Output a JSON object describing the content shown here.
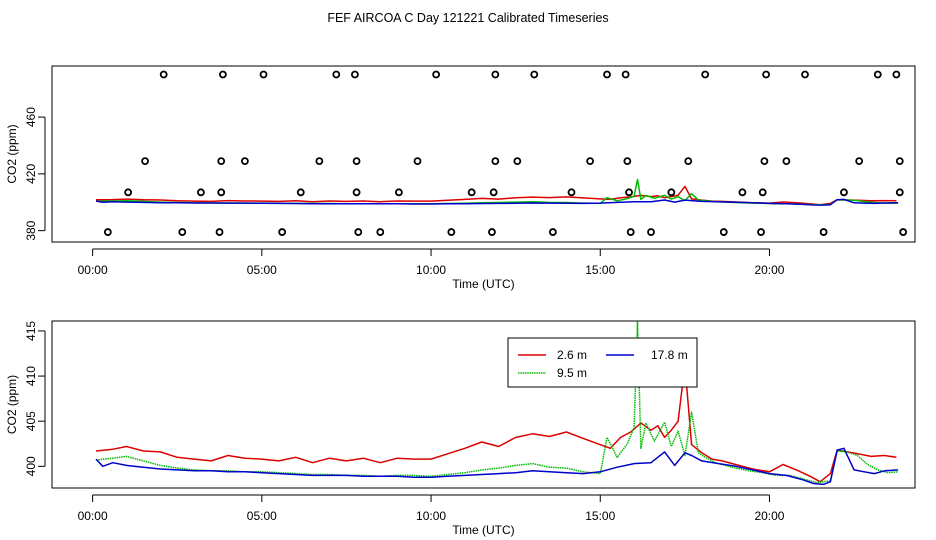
{
  "title": "FEF AIRCOA C  Day 121221  Calibrated Timeseries",
  "chart_data": [
    {
      "type": "scatter+line",
      "xlabel": "Time (UTC)",
      "ylabel": "CO2 (ppm)",
      "xlim": [
        -1.2,
        24.3
      ],
      "ylim": [
        372,
        496
      ],
      "xticks": [
        0,
        5,
        10,
        15,
        20
      ],
      "xtick_labels": [
        "00:00",
        "05:00",
        "10:00",
        "15:00",
        "20:00"
      ],
      "yticks": [
        380,
        420,
        460
      ],
      "ytick_labels": [
        "380",
        "420",
        "460"
      ],
      "calibration_points": [
        {
          "y": 490,
          "x": [
            2.1,
            3.85,
            5.05,
            7.2,
            7.75,
            10.15,
            11.9,
            13.05,
            15.2,
            15.75,
            18.1,
            19.9,
            21.05,
            23.2,
            23.75
          ]
        },
        {
          "y": 429,
          "x": [
            1.55,
            3.8,
            4.5,
            6.7,
            7.8,
            9.6,
            11.9,
            12.55,
            14.7,
            15.8,
            17.6,
            19.85,
            20.5,
            22.65,
            23.85
          ]
        },
        {
          "y": 407,
          "x": [
            1.05,
            3.2,
            3.8,
            6.15,
            7.8,
            9.05,
            11.2,
            11.85,
            14.15,
            15.85,
            17.1,
            19.2,
            19.8,
            22.2,
            23.85
          ]
        },
        {
          "y": 379,
          "x": [
            0.45,
            2.65,
            3.75,
            5.6,
            7.85,
            8.5,
            10.6,
            11.8,
            13.6,
            15.9,
            16.5,
            18.65,
            19.75,
            21.6,
            23.95
          ]
        }
      ],
      "series": [
        {
          "name": "2.6 m",
          "color": "#dd0000"
        },
        {
          "name": "9.5 m",
          "color": "#00bb00"
        },
        {
          "name": "17.8 m",
          "color": "#0000cc"
        }
      ]
    },
    {
      "type": "line",
      "xlabel": "Time (UTC)",
      "ylabel": "CO2 (ppm)",
      "xlim": [
        -1.2,
        24.3
      ],
      "ylim": [
        397.6,
        416.1
      ],
      "xticks": [
        0,
        5,
        10,
        15,
        20
      ],
      "xtick_labels": [
        "00:00",
        "05:00",
        "10:00",
        "15:00",
        "20:00"
      ],
      "yticks": [
        400,
        405,
        410,
        415
      ],
      "ytick_labels": [
        "400",
        "405",
        "410",
        "415"
      ],
      "legend": {
        "position": "top-right"
      },
      "series": [
        {
          "name": "2.6 m",
          "color": "#dd0000",
          "x": [
            0.1,
            0.6,
            1.0,
            1.5,
            2.0,
            2.5,
            3.0,
            3.5,
            4.0,
            4.5,
            5.0,
            5.5,
            6.0,
            6.5,
            7.0,
            7.5,
            8.0,
            8.5,
            9.0,
            9.5,
            10.0,
            10.5,
            11.0,
            11.5,
            12.0,
            12.5,
            13.0,
            13.5,
            14.0,
            14.5,
            15.0,
            15.3,
            15.6,
            15.9,
            16.2,
            16.5,
            16.7,
            16.9,
            17.1,
            17.3,
            17.5,
            17.7,
            18.0,
            18.3,
            18.6,
            19.0,
            19.5,
            20.0,
            20.4,
            20.8,
            21.2,
            21.5,
            21.8,
            22.0,
            22.3,
            22.6,
            23.0,
            23.4,
            23.75
          ],
          "y": [
            401.7,
            401.9,
            402.2,
            401.7,
            401.6,
            401.0,
            400.8,
            400.6,
            401.2,
            400.9,
            400.8,
            400.6,
            401.0,
            400.4,
            400.9,
            400.6,
            400.9,
            400.4,
            400.9,
            400.8,
            400.8,
            401.4,
            402.0,
            402.7,
            402.2,
            403.2,
            403.6,
            403.3,
            403.8,
            403.1,
            402.4,
            402.0,
            403.2,
            403.8,
            404.8,
            404.0,
            404.5,
            403.2,
            404.0,
            405.0,
            411.2,
            402.4,
            401.5,
            400.8,
            400.6,
            400.2,
            399.7,
            399.4,
            400.2,
            399.6,
            398.9,
            398.3,
            399.2,
            401.8,
            401.6,
            401.4,
            401.1,
            401.2,
            401.0
          ]
        },
        {
          "name": "9.5 m",
          "color": "#00bb00",
          "x": [
            0.1,
            0.6,
            1.0,
            1.5,
            2.0,
            2.5,
            3.0,
            3.5,
            4.0,
            4.5,
            5.0,
            5.5,
            6.0,
            6.5,
            7.0,
            7.5,
            8.0,
            8.5,
            9.0,
            9.5,
            10.0,
            10.5,
            11.0,
            11.5,
            12.0,
            12.5,
            13.0,
            13.5,
            14.0,
            14.5,
            15.0,
            15.2,
            15.5,
            15.8,
            16.0,
            16.1,
            16.2,
            16.35,
            16.6,
            16.9,
            17.1,
            17.3,
            17.5,
            17.7,
            17.9,
            18.1,
            18.4,
            18.7,
            19.0,
            19.4,
            19.8,
            20.2,
            20.6,
            21.0,
            21.4,
            21.8,
            22.0,
            22.3,
            22.6,
            22.9,
            23.2,
            23.5,
            23.8
          ],
          "y": [
            400.7,
            400.9,
            401.1,
            400.6,
            400.1,
            399.8,
            399.6,
            399.5,
            399.5,
            399.4,
            399.4,
            399.3,
            399.2,
            399.1,
            399.1,
            399.0,
            399.0,
            398.9,
            399.0,
            399.0,
            398.9,
            399.1,
            399.3,
            399.6,
            399.8,
            400.1,
            400.3,
            399.9,
            399.8,
            399.4,
            399.2,
            403.2,
            401.0,
            402.5,
            404.3,
            416.0,
            402.0,
            404.8,
            402.8,
            404.9,
            402.2,
            403.9,
            401.2,
            406.0,
            401.5,
            401.0,
            400.4,
            400.1,
            399.8,
            399.5,
            399.3,
            399.0,
            399.0,
            398.6,
            398.2,
            398.4,
            401.7,
            401.6,
            401.2,
            400.2,
            399.6,
            399.3,
            399.4
          ]
        },
        {
          "name": "17.8 m",
          "color": "#0000cc",
          "x": [
            0.1,
            0.3,
            0.6,
            1.0,
            1.5,
            2.0,
            2.5,
            3.0,
            3.5,
            4.0,
            4.5,
            5.0,
            5.5,
            6.0,
            6.5,
            7.0,
            7.5,
            8.0,
            8.5,
            9.0,
            9.5,
            10.0,
            10.5,
            11.0,
            11.5,
            12.0,
            12.5,
            13.0,
            13.5,
            14.0,
            14.5,
            15.0,
            15.5,
            16.0,
            16.5,
            16.9,
            17.2,
            17.5,
            17.7,
            18.0,
            18.5,
            19.0,
            19.5,
            20.0,
            20.5,
            21.0,
            21.3,
            21.6,
            21.8,
            22.0,
            22.2,
            22.5,
            22.8,
            23.1,
            23.4,
            23.8
          ],
          "y": [
            400.8,
            400.0,
            400.4,
            400.1,
            399.9,
            399.7,
            399.6,
            399.5,
            399.5,
            399.4,
            399.4,
            399.3,
            399.2,
            399.1,
            399.0,
            399.0,
            399.0,
            398.9,
            398.9,
            398.9,
            398.8,
            398.8,
            398.9,
            399.0,
            399.1,
            399.2,
            399.3,
            399.5,
            399.4,
            399.3,
            399.2,
            399.4,
            399.9,
            400.3,
            400.4,
            401.6,
            400.1,
            401.5,
            401.2,
            400.6,
            400.3,
            400.0,
            399.6,
            399.2,
            399.0,
            398.5,
            398.1,
            398.0,
            398.3,
            401.8,
            402.0,
            399.6,
            399.4,
            399.2,
            399.5,
            399.6
          ]
        }
      ]
    }
  ]
}
